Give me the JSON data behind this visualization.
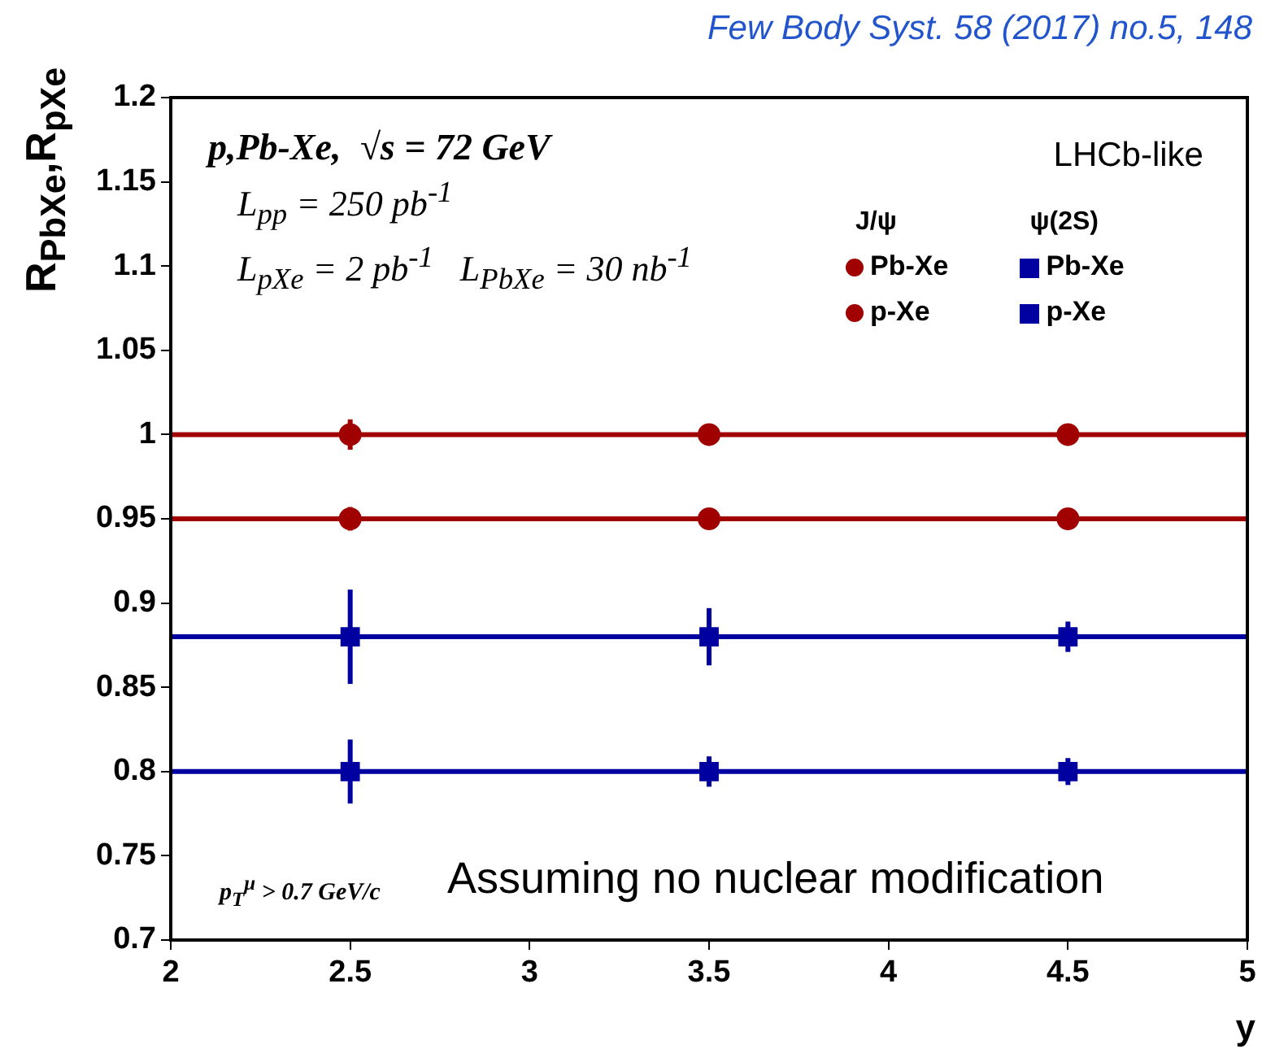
{
  "chart_data": {
    "type": "scatter",
    "title": "Few Body Syst. 58 (2017) no.5, 148",
    "xlabel": "y",
    "ylabel": "R$_{PbXe}$,R$_{pXe}$",
    "x": [
      2.5,
      3.5,
      4.5
    ],
    "series": [
      {
        "name": "Pb-Xe",
        "color": "#a00000",
        "marker": "circle",
        "values": [
          1,
          1,
          1
        ],
        "errors": [
          0.009,
          null,
          null
        ]
      },
      {
        "name": "p-Xe",
        "color": "#a00000",
        "marker": "circle",
        "values": [
          0.95,
          0.95,
          0.95
        ],
        "errors": [
          0.007,
          null,
          null
        ]
      },
      {
        "name": "Pb-Xe",
        "color": "#0000a0",
        "marker": "square",
        "values": [
          0.88,
          0.88,
          0.88
        ],
        "errors": [
          0.028,
          0.017,
          0.009
        ]
      },
      {
        "name": "p-Xe",
        "color": "#0000a0",
        "marker": "square",
        "values": [
          0.8,
          0.8,
          0.8
        ],
        "errors": [
          0.019,
          0.009,
          0.008
        ]
      }
    ],
    "xlim": [
      2,
      5
    ],
    "xticks": [
      2,
      2.5,
      3,
      3.5,
      4,
      4.5,
      5
    ],
    "ylim": [
      0.7,
      1.2
    ],
    "yticks": [
      0.7,
      0.75,
      0.8,
      0.85,
      0.9,
      0.95,
      1,
      1.05,
      1.1,
      1.15,
      1.2
    ],
    "ref_lines": [
      {
        "axis": "y",
        "value": 1,
        "color": "#a00000"
      },
      {
        "axis": "y",
        "value": 0.95,
        "color": "#a00000"
      },
      {
        "axis": "y",
        "value": 0.88,
        "color": "#0000a0"
      },
      {
        "axis": "y",
        "value": 0.8,
        "color": "#0000a0"
      }
    ],
    "annotations": [
      "p,Pb-Xe,  √s = 72 GeV",
      "L$_{pp}$ = 250 pb$^{-1}$",
      "L$_{pXe}$ = 2 pb$^{-1}$   L$_{PbXe}$ = 30 nb$^{-1}$",
      "LHCb-like",
      "J/ψ",
      "ψ(2S)",
      "p$_{T}$$^{μ}$ > 0.7 GeV/c",
      "Assuming no nuclear modification"
    ],
    "legend": "top right",
    "grid": false
  }
}
